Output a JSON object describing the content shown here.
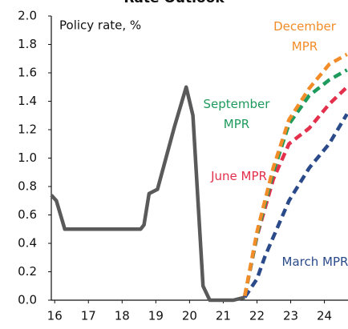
{
  "chart_data": {
    "type": "line",
    "title": "Rate Outlook",
    "annotation": "Policy rate, %",
    "xlim": [
      15.9,
      24.7
    ],
    "xticks": [
      16,
      17,
      18,
      19,
      20,
      21,
      22,
      23,
      24
    ],
    "ylim": [
      0,
      2
    ],
    "yticks": [
      {
        "value": 0,
        "label": "0.0"
      },
      0.2,
      0.4,
      0.6,
      0.8,
      {
        "value": 1,
        "label": "1.0"
      },
      1.2,
      1.4,
      1.6,
      1.8,
      {
        "value": 2,
        "label": "2.0"
      }
    ],
    "series": [
      {
        "color": "#5a5a5a",
        "dashed": false,
        "x": [
          15.9,
          16.05,
          16.3,
          18.55,
          18.65,
          18.8,
          19.05,
          19.55,
          19.9,
          20.1,
          20.4,
          20.6,
          21.3,
          21.64
        ],
        "values": [
          0.74,
          0.7,
          0.5,
          0.5,
          0.53,
          0.75,
          0.78,
          1.22,
          1.5,
          1.3,
          0.1,
          0,
          0,
          0.02
        ]
      },
      {
        "name": "March MPR",
        "color": "#2b4a8a",
        "dashed": true,
        "x": [
          21.64,
          22.0,
          22.24,
          22.95,
          23.55,
          24.14,
          24.67
        ],
        "values": [
          0.02,
          0.15,
          0.31,
          0.7,
          0.93,
          1.1,
          1.31
        ]
      },
      {
        "name": "June MPR",
        "color": "#e3304c",
        "dashed": true,
        "x": [
          21.64,
          22.0,
          22.48,
          22.95,
          23.55,
          24.14,
          24.67
        ],
        "values": [
          0.03,
          0.45,
          0.85,
          1.1,
          1.21,
          1.38,
          1.5
        ]
      },
      {
        "name": "September MPR",
        "color": "#1e9a5c",
        "dashed": true,
        "x": [
          21.64,
          22.0,
          22.48,
          22.95,
          23.55,
          24.14,
          24.67
        ],
        "values": [
          0.03,
          0.46,
          0.9,
          1.24,
          1.44,
          1.55,
          1.62
        ]
      },
      {
        "name": "December MPR",
        "color": "#f28c28",
        "dashed": true,
        "x": [
          21.64,
          22.0,
          22.48,
          22.95,
          23.55,
          24.14,
          24.67
        ],
        "values": [
          0.03,
          0.48,
          0.93,
          1.27,
          1.49,
          1.66,
          1.73
        ]
      }
    ]
  }
}
